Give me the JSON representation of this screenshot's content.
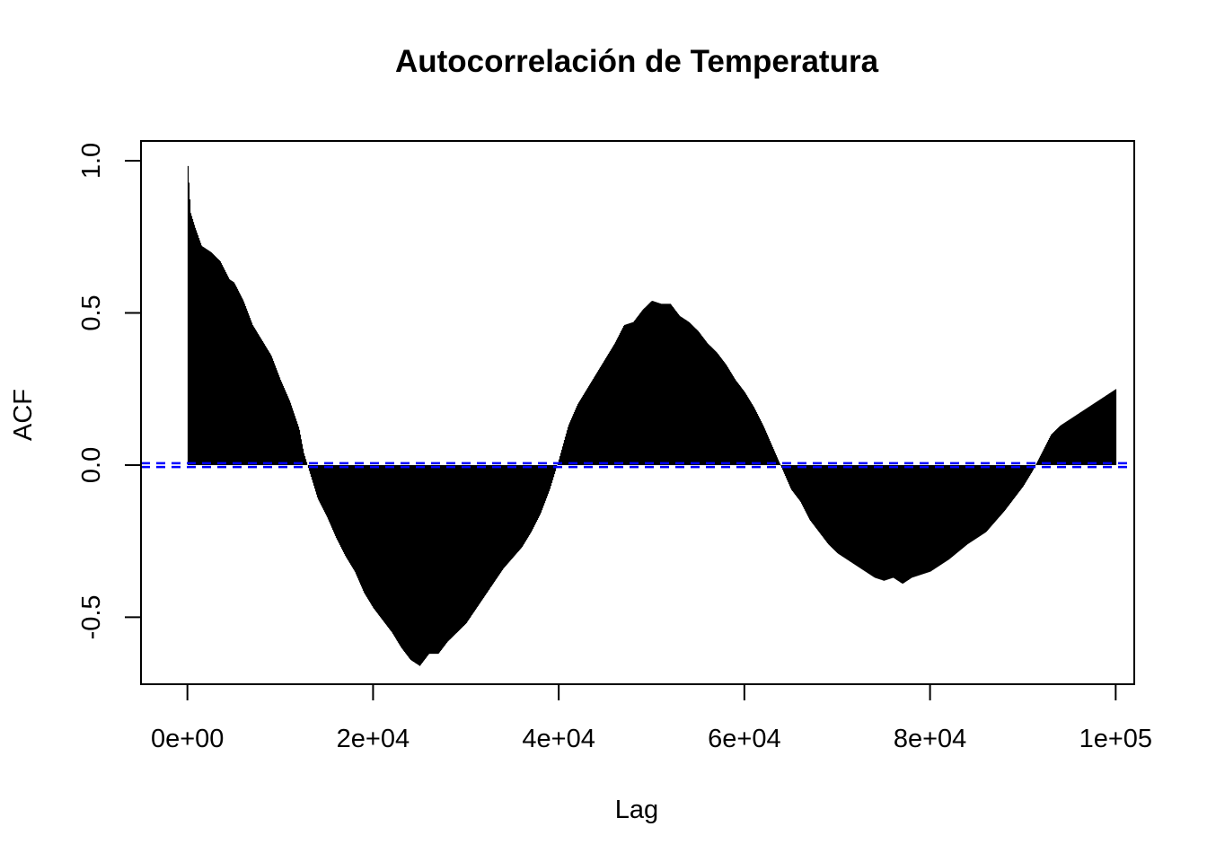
{
  "chart_data": {
    "type": "bar",
    "title": "Autocorrelación de Temperatura",
    "xlabel": "Lag",
    "ylabel": "ACF",
    "xlim": [
      -5000,
      102000
    ],
    "ylim": [
      -0.72,
      1.065
    ],
    "x_ticks": [
      {
        "value": 0,
        "label": "0e+00"
      },
      {
        "value": 20000,
        "label": "2e+04"
      },
      {
        "value": 40000,
        "label": "4e+04"
      },
      {
        "value": 60000,
        "label": "6e+04"
      },
      {
        "value": 80000,
        "label": "8e+04"
      },
      {
        "value": 100000,
        "label": "1e+05"
      }
    ],
    "y_ticks": [
      {
        "value": -0.5,
        "label": "-0.5"
      },
      {
        "value": 0.0,
        "label": "0.0"
      },
      {
        "value": 0.5,
        "label": "0.5"
      },
      {
        "value": 1.0,
        "label": "1.0"
      }
    ],
    "grid": false,
    "legend": "none",
    "confidence_bounds": [
      0.0063,
      -0.0063
    ],
    "colors": {
      "bars": "#000000",
      "confidence": "#0000FF",
      "axis": "#000000"
    },
    "acf_profile": {
      "lag": [
        0,
        300,
        800,
        1500,
        2500,
        3500,
        4500,
        5000,
        6000,
        7000,
        8000,
        9000,
        10000,
        11000,
        12000,
        12500,
        13000,
        14000,
        15000,
        16000,
        17000,
        18000,
        19000,
        20000,
        21000,
        22000,
        23000,
        24000,
        25000,
        26000,
        27000,
        28000,
        30000,
        32000,
        34000,
        36000,
        37000,
        38000,
        39000,
        40000,
        41000,
        42000,
        43000,
        44000,
        45000,
        46000,
        47000,
        48000,
        49000,
        50000,
        51000,
        52000,
        53000,
        54000,
        55000,
        56000,
        57000,
        58000,
        59000,
        60000,
        61000,
        62000,
        63000,
        64000,
        65000,
        66000,
        67000,
        68000,
        69000,
        70000,
        72000,
        74000,
        75000,
        76000,
        77000,
        78000,
        80000,
        82000,
        84000,
        86000,
        88000,
        90000,
        91000,
        92000,
        93000,
        94000,
        95000,
        96000,
        97000,
        98000,
        99000,
        100000
      ],
      "acf": [
        1.0,
        0.83,
        0.78,
        0.72,
        0.7,
        0.67,
        0.61,
        0.6,
        0.54,
        0.46,
        0.41,
        0.36,
        0.28,
        0.21,
        0.12,
        0.04,
        -0.01,
        -0.11,
        -0.17,
        -0.24,
        -0.3,
        -0.35,
        -0.42,
        -0.47,
        -0.51,
        -0.55,
        -0.6,
        -0.64,
        -0.66,
        -0.62,
        -0.62,
        -0.58,
        -0.52,
        -0.43,
        -0.34,
        -0.27,
        -0.22,
        -0.16,
        -0.08,
        0.02,
        0.13,
        0.2,
        0.25,
        0.3,
        0.35,
        0.4,
        0.46,
        0.47,
        0.51,
        0.54,
        0.53,
        0.53,
        0.49,
        0.47,
        0.44,
        0.4,
        0.37,
        0.33,
        0.28,
        0.24,
        0.19,
        0.13,
        0.06,
        -0.01,
        -0.08,
        -0.12,
        -0.18,
        -0.22,
        -0.26,
        -0.29,
        -0.33,
        -0.37,
        -0.38,
        -0.37,
        -0.39,
        -0.37,
        -0.35,
        -0.31,
        -0.26,
        -0.22,
        -0.15,
        -0.07,
        -0.02,
        0.04,
        0.1,
        0.13,
        0.15,
        0.17,
        0.19,
        0.21,
        0.23,
        0.25
      ]
    }
  }
}
